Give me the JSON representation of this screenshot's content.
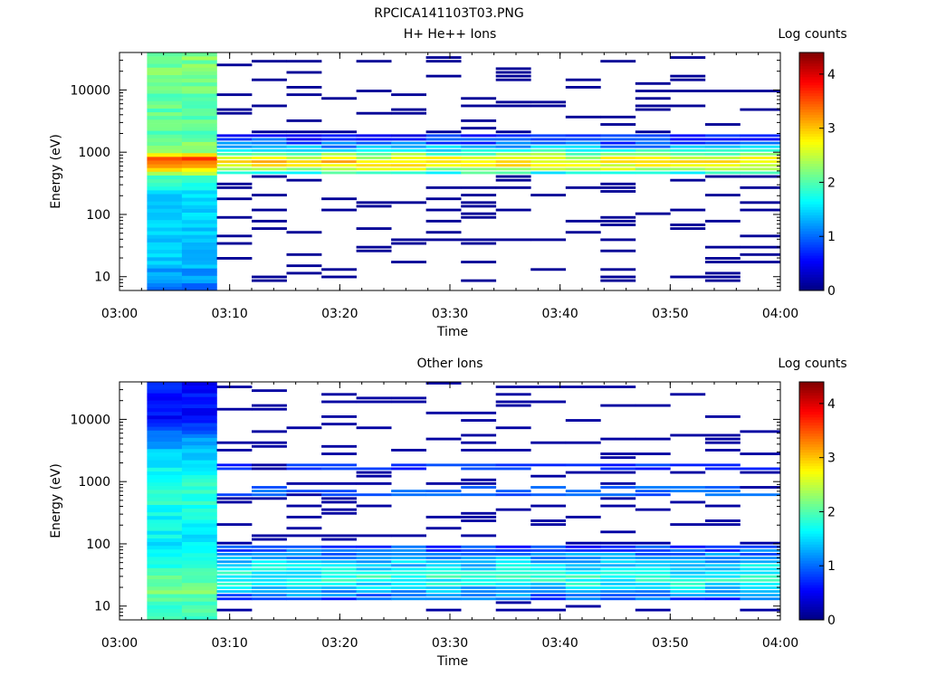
{
  "figure": {
    "title": "RPCICA141103T03.PNG"
  },
  "chart_data": [
    {
      "type": "heatmap",
      "title": "H+ He++ Ions",
      "xlabel": "Time",
      "ylabel": "Energy (eV)",
      "x_ticks": [
        "03:00",
        "03:10",
        "03:20",
        "03:30",
        "03:40",
        "03:50",
        "04:00"
      ],
      "xlim": [
        "03:00",
        "04:00"
      ],
      "y_ticks": [
        10,
        100,
        1000,
        10000
      ],
      "yscale": "log",
      "ylim": [
        6,
        40000
      ],
      "colorbar": {
        "label": "Log counts",
        "ticks": [
          0,
          1,
          2,
          3,
          4
        ],
        "range": [
          0,
          4.4
        ],
        "colormap": "jet"
      },
      "time_bins": [
        [
          "03:02:30",
          "03:05:40"
        ],
        [
          "03:05:40",
          "03:08:50"
        ],
        [
          "03:08:50",
          "03:12:00"
        ],
        [
          "03:12:00",
          "03:15:10"
        ],
        [
          "03:15:10",
          "03:18:20"
        ],
        [
          "03:18:20",
          "03:21:30"
        ],
        [
          "03:21:30",
          "03:24:40"
        ],
        [
          "03:24:40",
          "03:27:50"
        ],
        [
          "03:27:50",
          "03:31:00"
        ],
        [
          "03:31:00",
          "03:34:10"
        ],
        [
          "03:34:10",
          "03:37:20"
        ],
        [
          "03:37:20",
          "03:40:30"
        ],
        [
          "03:40:30",
          "03:43:40"
        ],
        [
          "03:43:40",
          "03:46:50"
        ],
        [
          "03:46:50",
          "03:50:00"
        ],
        [
          "03:50:00",
          "03:53:10"
        ],
        [
          "03:53:10",
          "03:56:20"
        ],
        [
          "03:56:20",
          "04:00:00"
        ]
      ],
      "profiles": [
        {
          "bins": [
            0,
            1
          ],
          "dense": true,
          "pts": [
            [
              8,
              1.1
            ],
            [
              20,
              1.4
            ],
            [
              60,
              1.4
            ],
            [
              200,
              1.5
            ],
            [
              400,
              2.0
            ],
            [
              650,
              3.4
            ],
            [
              800,
              3.5
            ],
            [
              1000,
              2.3
            ],
            [
              2000,
              2.0
            ],
            [
              10000,
              2.1
            ],
            [
              40000,
              2.2
            ]
          ]
        },
        {
          "bins": [
            2,
            3,
            4,
            5,
            6,
            7,
            8,
            9,
            10,
            11,
            12,
            13,
            14,
            15,
            16,
            17
          ],
          "dense": false,
          "band_lo": 400,
          "band_hi": 2000,
          "band_pts": [
            [
              400,
              1.2
            ],
            [
              550,
              2.6
            ],
            [
              700,
              2.9
            ],
            [
              900,
              2.2
            ],
            [
              1300,
              1.0
            ],
            [
              2000,
              0.5
            ]
          ],
          "sparse_level": 0.1
        }
      ]
    },
    {
      "type": "heatmap",
      "title": "Other Ions",
      "xlabel": "Time",
      "ylabel": "Energy (eV)",
      "x_ticks": [
        "03:00",
        "03:10",
        "03:20",
        "03:30",
        "03:40",
        "03:50",
        "04:00"
      ],
      "xlim": [
        "03:00",
        "04:00"
      ],
      "y_ticks": [
        10,
        100,
        1000,
        10000
      ],
      "yscale": "log",
      "ylim": [
        6,
        40000
      ],
      "colorbar": {
        "label": "Log counts",
        "ticks": [
          0,
          1,
          2,
          3,
          4
        ],
        "range": [
          0,
          4.4
        ],
        "colormap": "jet"
      },
      "time_bins": [
        [
          "03:02:30",
          "03:05:40"
        ],
        [
          "03:05:40",
          "03:08:50"
        ],
        [
          "03:08:50",
          "03:12:00"
        ],
        [
          "03:12:00",
          "03:15:10"
        ],
        [
          "03:15:10",
          "03:18:20"
        ],
        [
          "03:18:20",
          "03:21:30"
        ],
        [
          "03:21:30",
          "03:24:40"
        ],
        [
          "03:24:40",
          "03:27:50"
        ],
        [
          "03:27:50",
          "03:31:00"
        ],
        [
          "03:31:00",
          "03:34:10"
        ],
        [
          "03:34:10",
          "03:37:20"
        ],
        [
          "03:37:20",
          "03:40:30"
        ],
        [
          "03:40:30",
          "03:43:40"
        ],
        [
          "03:43:40",
          "03:46:50"
        ],
        [
          "03:46:50",
          "03:50:00"
        ],
        [
          "03:50:00",
          "03:53:10"
        ],
        [
          "03:53:10",
          "03:56:20"
        ],
        [
          "03:56:20",
          "04:00:00"
        ]
      ],
      "profiles": [
        {
          "bins": [
            0,
            1
          ],
          "dense": true,
          "pts": [
            [
              8,
              1.9
            ],
            [
              20,
              2.2
            ],
            [
              40,
              1.8
            ],
            [
              100,
              1.6
            ],
            [
              300,
              1.7
            ],
            [
              800,
              1.9
            ],
            [
              2000,
              1.5
            ],
            [
              5000,
              1.2
            ],
            [
              10000,
              0.6
            ],
            [
              40000,
              0.6
            ]
          ]
        },
        {
          "bins": [
            2,
            3,
            4,
            5,
            6,
            7,
            8,
            9,
            10,
            11,
            12,
            13,
            14,
            15,
            16,
            17
          ],
          "dense": false,
          "band_lo": 12,
          "band_hi": 90,
          "band_pts": [
            [
              12,
              0.8
            ],
            [
              25,
              1.8
            ],
            [
              40,
              1.6
            ],
            [
              60,
              1.2
            ],
            [
              90,
              0.8
            ]
          ],
          "sparse_level": 0.15,
          "line_bands": [
            [
              550,
              800,
              0.8
            ],
            [
              1400,
              1900,
              0.6
            ]
          ]
        }
      ]
    }
  ]
}
